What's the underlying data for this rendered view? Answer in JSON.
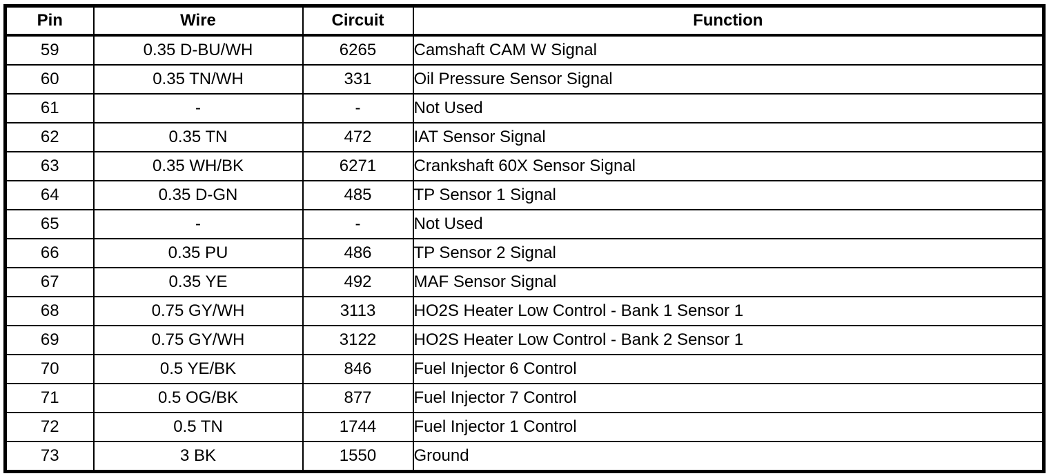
{
  "table": {
    "columns": [
      "Pin",
      "Wire",
      "Circuit",
      "Function"
    ],
    "row_keys": [
      "pin",
      "wire",
      "circuit",
      "function"
    ],
    "border_color": "#000000",
    "background_color": "#ffffff",
    "rows": [
      {
        "pin": "59",
        "wire": "0.35 D-BU/WH",
        "circuit": "6265",
        "function": "Camshaft CAM W Signal"
      },
      {
        "pin": "60",
        "wire": "0.35 TN/WH",
        "circuit": "331",
        "function": "Oil Pressure Sensor Signal"
      },
      {
        "pin": "61",
        "wire": "-",
        "circuit": "-",
        "function": "Not Used"
      },
      {
        "pin": "62",
        "wire": "0.35 TN",
        "circuit": "472",
        "function": "IAT Sensor Signal"
      },
      {
        "pin": "63",
        "wire": "0.35 WH/BK",
        "circuit": "6271",
        "function": "Crankshaft 60X Sensor Signal"
      },
      {
        "pin": "64",
        "wire": "0.35 D-GN",
        "circuit": "485",
        "function": "TP Sensor 1 Signal"
      },
      {
        "pin": "65",
        "wire": "-",
        "circuit": "-",
        "function": "Not Used"
      },
      {
        "pin": "66",
        "wire": "0.35 PU",
        "circuit": "486",
        "function": "TP Sensor 2 Signal"
      },
      {
        "pin": "67",
        "wire": "0.35 YE",
        "circuit": "492",
        "function": "MAF Sensor Signal"
      },
      {
        "pin": "68",
        "wire": "0.75 GY/WH",
        "circuit": "3113",
        "function": "HO2S Heater Low Control - Bank 1 Sensor 1"
      },
      {
        "pin": "69",
        "wire": "0.75 GY/WH",
        "circuit": "3122",
        "function": "HO2S Heater Low Control - Bank 2 Sensor 1"
      },
      {
        "pin": "70",
        "wire": "0.5 YE/BK",
        "circuit": "846",
        "function": "Fuel Injector 6 Control"
      },
      {
        "pin": "71",
        "wire": "0.5 OG/BK",
        "circuit": "877",
        "function": "Fuel Injector 7 Control"
      },
      {
        "pin": "72",
        "wire": "0.5 TN",
        "circuit": "1744",
        "function": "Fuel Injector 1 Control"
      },
      {
        "pin": "73",
        "wire": "3 BK",
        "circuit": "1550",
        "function": "Ground"
      }
    ]
  }
}
